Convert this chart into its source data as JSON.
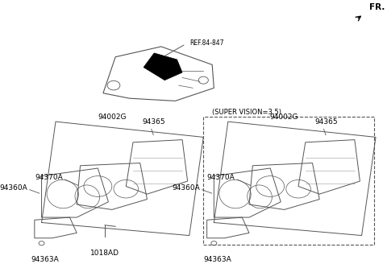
{
  "bg_color": "#ffffff",
  "fr_text": "FR.",
  "ref_label": "REF.84-847",
  "super_vision_label": "(SUPER VISION=3.5)",
  "line_color": "#555555",
  "text_color": "#000000",
  "font_size": 6.5,
  "left_parts": [
    "94002G",
    "94365",
    "94370A",
    "94360A",
    "94363A",
    "1018AD"
  ],
  "right_parts": [
    "94002G",
    "94365",
    "94370A",
    "94360A",
    "94363A"
  ]
}
